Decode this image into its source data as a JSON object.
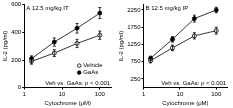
{
  "chart_data": [
    {
      "type": "line",
      "title": "A 12.5 mg/kg IT",
      "x_label": "Cytochrome (μM)",
      "y_label": "IL-2 (pg/ml)",
      "annotation": "Veh vs. GaAs: p < 0.001",
      "x": [
        1.56,
        6.25,
        25,
        100
      ],
      "series": [
        {
          "name": "Vehicle",
          "color": "#000000",
          "marker": "open_circle",
          "values": [
            190,
            250,
            320,
            380
          ],
          "errors": [
            20,
            25,
            30,
            30
          ]
        },
        {
          "name": "GaAs",
          "color": "#000000",
          "marker": "filled_circle",
          "values": [
            210,
            330,
            430,
            540
          ],
          "errors": [
            20,
            30,
            35,
            40
          ]
        }
      ],
      "log": "x",
      "xlim": [
        1,
        200
      ],
      "xticks": [
        1,
        10,
        100
      ],
      "ylim": [
        0,
        600
      ],
      "yticks": [
        0,
        200,
        400,
        600
      ],
      "grid": false,
      "legend": "right"
    },
    {
      "type": "line",
      "title": "B 12.5 mg/kg IP",
      "x_label": "Cytochrome (μM)",
      "y_label": "IL-2 (pg/ml)",
      "annotation": "Veh vs. GaAs: p < 0.001",
      "x": [
        1.56,
        6.25,
        25,
        100
      ],
      "series": [
        {
          "name": "Vehicle",
          "color": "#000000",
          "marker": "open_circle",
          "values": [
            780,
            1150,
            1500,
            1650
          ],
          "errors": [
            60,
            80,
            90,
            100
          ]
        },
        {
          "name": "GaAs",
          "color": "#000000",
          "marker": "filled_circle",
          "values": [
            850,
            1400,
            2000,
            2250
          ],
          "errors": [
            60,
            80,
            100,
            80
          ]
        }
      ],
      "log": "x",
      "xlim": [
        1,
        200
      ],
      "xticks": [
        1,
        10,
        100
      ],
      "ylim": [
        0,
        2400
      ],
      "yticks": [
        250,
        750,
        1250,
        1750,
        2250
      ],
      "grid": false
    }
  ]
}
